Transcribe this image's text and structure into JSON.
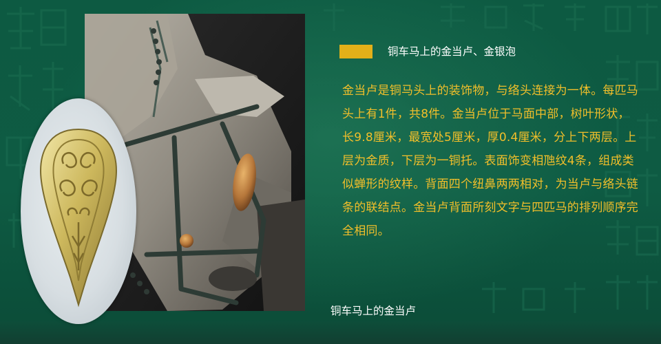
{
  "heading": {
    "title": "铜车马上的金当卢、金银泡",
    "accent_color": "#e3b019"
  },
  "description": "金当卢是铜马头上的装饰物，与络头连接为一体。每匹马头上有1件，共8件。金当卢位于马面中部，树叶形状，长9.8厘米，最宽处5厘米，厚0.4厘米，分上下两层。上层为金质，下层为一铜托。表面饰变相虺纹4条，组成类似蝉形的纹样。背面四个纽鼻两两相对，为当卢与络头链条的联结点。金当卢背面所刻文字与四匹马的排列顺序完全相同。",
  "caption": "铜车马上的金当卢",
  "colors": {
    "background": "#0f5440",
    "body_text": "#f2bf2a",
    "title_text": "#ffffff"
  },
  "images": {
    "main_photo": "bronze-horse-head-photo",
    "inset_photo": "gold-danglu-ornament-photo"
  }
}
